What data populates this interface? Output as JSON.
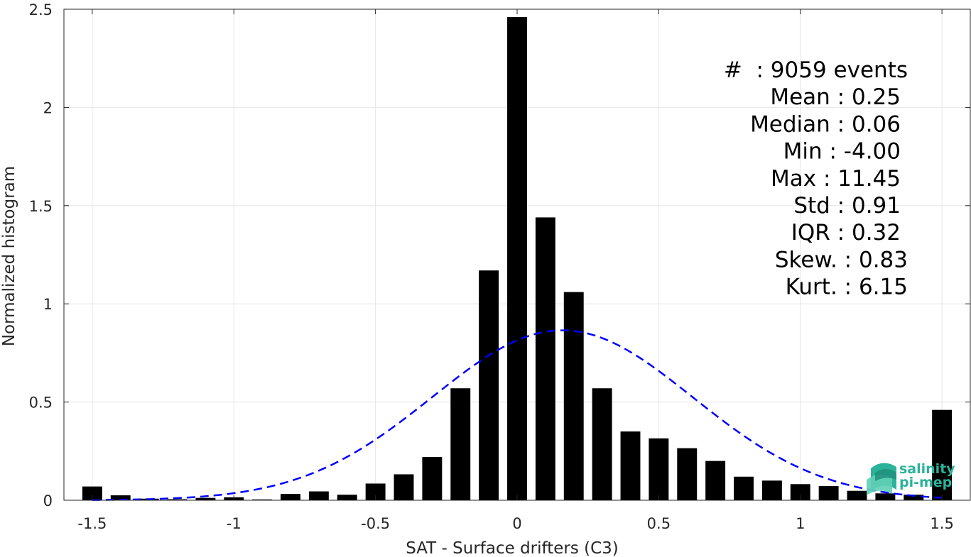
{
  "chart_data": {
    "type": "bar",
    "xlabel": "SAT - Surface drifters (C3)",
    "ylabel": "Normalized histogram",
    "xlim": [
      -1.6,
      1.6
    ],
    "ylim": [
      0,
      2.5
    ],
    "grid": true,
    "xticks": [
      -1.5,
      -1,
      -0.5,
      0,
      0.5,
      1,
      1.5
    ],
    "xtick_labels": [
      "-1.5",
      "-1",
      "-0.5",
      "0",
      "0.5",
      "1",
      "1.5"
    ],
    "yticks": [
      0,
      0.5,
      1,
      1.5,
      2,
      2.5
    ],
    "ytick_labels": [
      "0",
      "0.5",
      "1",
      "1.5",
      "2",
      "2.5"
    ],
    "bin_width": 0.1,
    "x": [
      -1.5,
      -1.4,
      -1.3,
      -1.2,
      -1.1,
      -1.0,
      -0.9,
      -0.8,
      -0.7,
      -0.6,
      -0.5,
      -0.4,
      -0.3,
      -0.2,
      -0.1,
      0.0,
      0.1,
      0.2,
      0.3,
      0.4,
      0.5,
      0.6,
      0.7,
      0.8,
      0.9,
      1.0,
      1.1,
      1.2,
      1.3,
      1.4,
      1.5
    ],
    "values": [
      0.07,
      0.025,
      0.008,
      0.005,
      0.012,
      0.015,
      0.004,
      0.032,
      0.045,
      0.028,
      0.085,
      0.132,
      0.22,
      0.57,
      1.17,
      2.46,
      1.44,
      1.06,
      0.57,
      0.35,
      0.315,
      0.265,
      0.2,
      0.12,
      0.1,
      0.082,
      0.072,
      0.048,
      0.035,
      0.028,
      0.46
    ],
    "bar_color": "#000000",
    "fit_curve": {
      "style": "dashed",
      "color": "#0000ff",
      "mean": 0.16,
      "std": 0.46,
      "peak": 0.865
    },
    "annotations": [
      "#  : 9059 events",
      "Mean : 0.25",
      "Median : 0.06",
      "Min : -4.00",
      "Max : 11.45",
      "Std : 0.91",
      "IQR : 0.32",
      "Skew. : 0.83",
      "Kurt. : 6.15"
    ]
  },
  "logo": {
    "line1": "salinity",
    "line2": "pi-mep",
    "color": "#2bb39a"
  }
}
